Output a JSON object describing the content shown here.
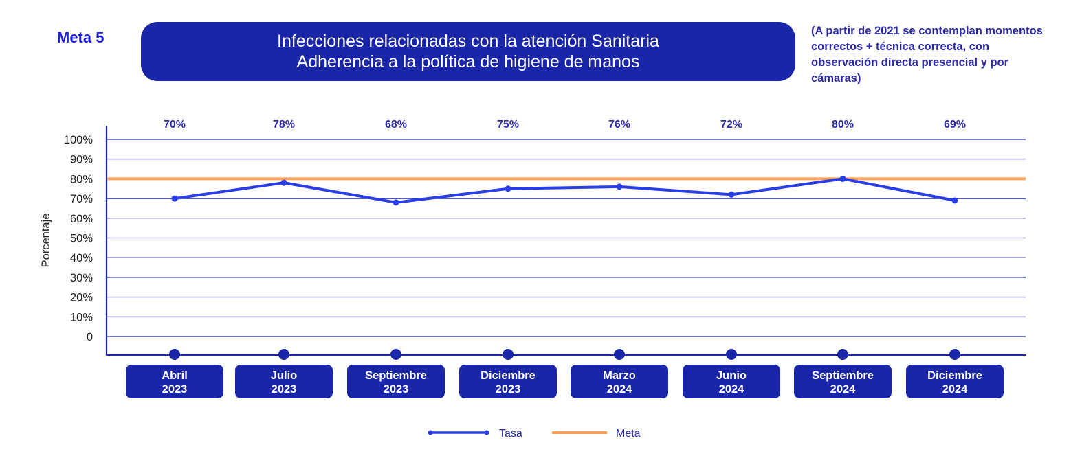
{
  "header": {
    "meta_label": "Meta 5",
    "title_line1": "Infecciones relacionadas con la atención Sanitaria",
    "title_line2": "Adherencia a la política de higiene de manos",
    "note": "(A partir de 2021 se contemplan momentos correctos + técnica correcta, con observación directa presencial y por cámaras)"
  },
  "colors": {
    "primary": "#1a26a8",
    "line": "#2a3ee6",
    "target": "#ff9f55",
    "grid_dark": "#1a26a8",
    "grid_light": "#a9acd8"
  },
  "chart_data": {
    "type": "line",
    "title": "Adherencia a la política de higiene de manos",
    "ylabel": "Porcentaje",
    "xlabel": "",
    "ylim": [
      0,
      100
    ],
    "yticks": [
      "0",
      "10%",
      "20%",
      "30%",
      "40%",
      "50%",
      "60%",
      "70%",
      "80%",
      "90%",
      "100%"
    ],
    "grid": true,
    "categories": [
      {
        "month": "Abril",
        "year": "2023"
      },
      {
        "month": "Julio",
        "year": "2023"
      },
      {
        "month": "Septiembre",
        "year": "2023"
      },
      {
        "month": "Diciembre",
        "year": "2023"
      },
      {
        "month": "Marzo",
        "year": "2024"
      },
      {
        "month": "Junio",
        "year": "2024"
      },
      {
        "month": "Septiembre",
        "year": "2024"
      },
      {
        "month": "Diciembre",
        "year": "2024"
      }
    ],
    "series": [
      {
        "name": "Tasa",
        "values": [
          70,
          78,
          68,
          75,
          76,
          72,
          80,
          69
        ],
        "labels": [
          "70%",
          "78%",
          "68%",
          "75%",
          "76%",
          "72%",
          "80%",
          "69%"
        ]
      },
      {
        "name": "Meta",
        "value": 80
      }
    ],
    "legend": {
      "position": "bottom-center",
      "items": [
        "Tasa",
        "Meta"
      ]
    }
  }
}
